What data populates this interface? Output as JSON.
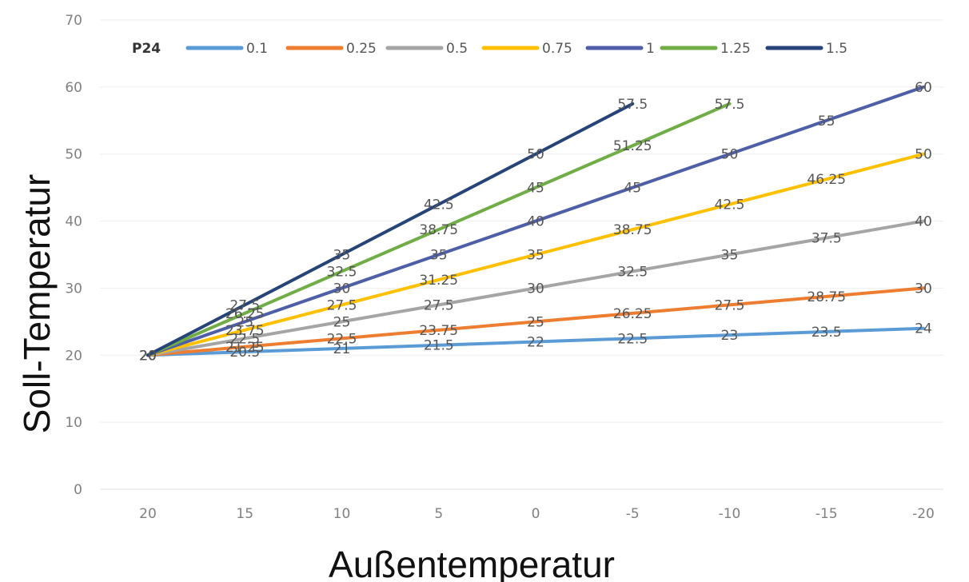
{
  "chart_data": {
    "type": "line",
    "title": "",
    "xlabel": "Außentemperatur",
    "ylabel": "Soll-Temperatur",
    "x": [
      20,
      15,
      10,
      5,
      0,
      -5,
      -10,
      -15,
      -20
    ],
    "x_tick_labels": [
      "20",
      "15",
      "10",
      "5",
      "0",
      "-5",
      "-10",
      "-15",
      "-20"
    ],
    "ylim": [
      0,
      70
    ],
    "y_ticks": [
      0,
      10,
      20,
      30,
      40,
      50,
      60,
      70
    ],
    "y_tick_labels": [
      "0",
      "10",
      "20",
      "30",
      "40",
      "50",
      "60",
      "70"
    ],
    "grid": true,
    "legend": {
      "title": "P24",
      "position": "top"
    },
    "series": [
      {
        "name": "0.1",
        "color": "#5b9bd5",
        "values": [
          20,
          20.5,
          21,
          21.5,
          22,
          22.5,
          23,
          23.5,
          24
        ],
        "labels": [
          "20",
          "20.5",
          "21",
          "21.5",
          "22",
          "22.5",
          "23",
          "23.5",
          "24"
        ]
      },
      {
        "name": "0.25",
        "color": "#ed7d31",
        "values": [
          20,
          21.25,
          22.5,
          23.75,
          25,
          26.25,
          27.5,
          28.75,
          30
        ],
        "labels": [
          "20",
          "21.25",
          "22.5",
          "23.75",
          "25",
          "26.25",
          "27.5",
          "28.75",
          "30"
        ]
      },
      {
        "name": "0.5",
        "color": "#a5a5a5",
        "values": [
          20,
          22.5,
          25,
          27.5,
          30,
          32.5,
          35,
          37.5,
          40
        ],
        "labels": [
          "20",
          "22.5",
          "25",
          "27.5",
          "30",
          "32.5",
          "35",
          "37.5",
          "40"
        ]
      },
      {
        "name": "0.75",
        "color": "#ffc000",
        "values": [
          20,
          23.75,
          27.5,
          31.25,
          35,
          38.75,
          42.5,
          46.25,
          50
        ],
        "labels": [
          "20",
          "23.75",
          "27.5",
          "31.25",
          "35",
          "38.75",
          "42.5",
          "46.25",
          "50"
        ]
      },
      {
        "name": "1",
        "color": "#4e5fa8",
        "values": [
          20,
          25,
          30,
          35,
          40,
          45,
          50,
          55,
          60
        ],
        "labels": [
          "20",
          "25",
          "30",
          "35",
          "40",
          "45",
          "50",
          "55",
          "60"
        ]
      },
      {
        "name": "1.25",
        "color": "#70ad47",
        "values": [
          20,
          26.25,
          32.5,
          38.75,
          45,
          51.25,
          57.5,
          null,
          null
        ],
        "labels": [
          "20",
          "26.25",
          "32.5",
          "38.75",
          "45",
          "51.25",
          "57.5",
          null,
          null
        ]
      },
      {
        "name": "1.5",
        "color": "#264478",
        "values": [
          20,
          27.5,
          35,
          42.5,
          50,
          57.5,
          null,
          null,
          null
        ],
        "labels": [
          "20",
          "27.5",
          "35",
          "42.5",
          "50",
          "57.5",
          null,
          null,
          null
        ]
      }
    ]
  }
}
